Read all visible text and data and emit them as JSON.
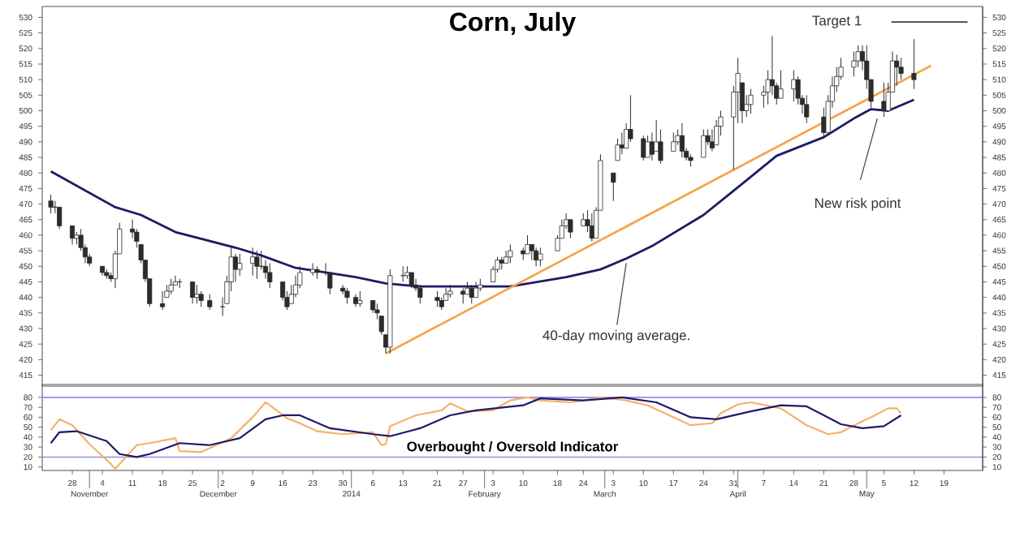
{
  "chart_data": [
    {
      "type": "candlestick",
      "title": "Corn, July",
      "color": "#2b2b2b",
      "x": [
        "2013-10-23",
        "2013-10-24",
        "2013-10-25",
        "2013-10-28",
        "2013-10-29",
        "2013-10-30",
        "2013-10-31",
        "2013-11-01",
        "2013-11-04",
        "2013-11-05",
        "2013-11-06",
        "2013-11-07",
        "2013-11-08",
        "2013-11-11",
        "2013-11-12",
        "2013-11-13",
        "2013-11-14",
        "2013-11-15",
        "2013-11-18",
        "2013-11-19",
        "2013-11-20",
        "2013-11-21",
        "2013-11-22",
        "2013-11-25",
        "2013-11-26",
        "2013-11-27",
        "2013-11-29",
        "2013-12-02",
        "2013-12-03",
        "2013-12-04",
        "2013-12-05",
        "2013-12-06",
        "2013-12-09",
        "2013-12-10",
        "2013-12-11",
        "2013-12-12",
        "2013-12-13",
        "2013-12-16",
        "2013-12-17",
        "2013-12-18",
        "2013-12-19",
        "2013-12-20",
        "2013-12-23",
        "2013-12-24",
        "2013-12-26",
        "2013-12-27",
        "2013-12-30",
        "2013-12-31",
        "2014-01-02",
        "2014-01-03",
        "2014-01-06",
        "2014-01-07",
        "2014-01-08",
        "2014-01-09",
        "2014-01-10",
        "2014-01-13",
        "2014-01-14",
        "2014-01-15",
        "2014-01-16",
        "2014-01-17",
        "2014-01-21",
        "2014-01-22",
        "2014-01-23",
        "2014-01-24",
        "2014-01-27",
        "2014-01-28",
        "2014-01-29",
        "2014-01-30",
        "2014-01-31",
        "2014-02-03",
        "2014-02-04",
        "2014-02-05",
        "2014-02-06",
        "2014-02-07",
        "2014-02-10",
        "2014-02-11",
        "2014-02-12",
        "2014-02-13",
        "2014-02-14",
        "2014-02-18",
        "2014-02-19",
        "2014-02-20",
        "2014-02-21",
        "2014-02-24",
        "2014-02-25",
        "2014-02-26",
        "2014-02-27",
        "2014-02-28",
        "2014-03-03",
        "2014-03-04",
        "2014-03-05",
        "2014-03-06",
        "2014-03-07",
        "2014-03-10",
        "2014-03-11",
        "2014-03-12",
        "2014-03-13",
        "2014-03-14",
        "2014-03-17",
        "2014-03-18",
        "2014-03-19",
        "2014-03-20",
        "2014-03-21",
        "2014-03-24",
        "2014-03-25",
        "2014-03-26",
        "2014-03-27",
        "2014-03-28",
        "2014-03-31",
        "2014-04-01",
        "2014-04-02",
        "2014-04-03",
        "2014-04-04",
        "2014-04-07",
        "2014-04-08",
        "2014-04-09",
        "2014-04-10",
        "2014-04-11",
        "2014-04-14",
        "2014-04-15",
        "2014-04-16",
        "2014-04-17",
        "2014-04-21",
        "2014-04-22",
        "2014-04-23",
        "2014-04-24",
        "2014-04-25",
        "2014-04-28",
        "2014-04-29",
        "2014-04-30",
        "2014-05-01",
        "2014-05-02",
        "2014-05-05",
        "2014-05-06",
        "2014-05-07",
        "2014-05-08",
        "2014-05-09",
        "2014-05-12"
      ],
      "ohlc": [
        [
          471,
          473,
          467,
          469
        ],
        [
          469,
          471,
          467,
          469
        ],
        [
          469,
          469,
          462,
          463
        ],
        [
          463,
          463,
          457,
          459
        ],
        [
          459,
          461,
          457,
          460
        ],
        [
          460,
          462,
          455,
          456
        ],
        [
          456,
          457,
          451,
          453
        ],
        [
          453,
          454,
          450,
          451
        ],
        [
          450,
          450,
          447,
          448
        ],
        [
          448,
          449,
          446,
          447
        ],
        [
          447,
          448,
          445,
          446
        ],
        [
          446,
          455,
          443,
          454
        ],
        [
          454,
          464,
          454,
          462
        ],
        [
          462,
          465,
          459,
          461
        ],
        [
          461,
          462,
          456,
          458
        ],
        [
          457,
          457,
          451,
          452
        ],
        [
          452,
          452,
          445,
          446
        ],
        [
          446,
          446,
          437,
          438
        ],
        [
          438,
          442,
          436,
          437
        ],
        [
          440,
          444,
          440,
          442
        ],
        [
          442,
          446,
          441,
          444
        ],
        [
          444,
          447,
          444,
          445
        ],
        [
          445,
          446,
          443,
          445
        ],
        [
          445,
          445,
          438,
          440
        ],
        [
          440,
          444,
          438,
          441
        ],
        [
          441,
          442,
          437,
          439
        ],
        [
          439,
          441,
          436,
          437
        ],
        [
          437,
          440,
          434,
          437
        ],
        [
          438,
          447,
          438,
          445
        ],
        [
          445,
          456,
          442,
          453
        ],
        [
          453,
          454,
          445,
          449
        ],
        [
          449,
          454,
          447,
          451
        ],
        [
          451,
          456,
          447,
          453
        ],
        [
          453,
          455,
          446,
          450
        ],
        [
          450,
          455,
          449,
          450
        ],
        [
          450,
          452,
          446,
          448
        ],
        [
          448,
          451,
          443,
          445
        ],
        [
          445,
          445,
          439,
          440
        ],
        [
          440,
          442,
          436,
          437
        ],
        [
          438,
          444,
          438,
          441
        ],
        [
          441,
          447,
          440,
          444
        ],
        [
          444,
          450,
          443,
          448
        ],
        [
          448,
          451,
          447,
          449
        ],
        [
          449,
          450,
          446,
          448
        ],
        [
          448,
          451,
          447,
          448
        ],
        [
          448,
          448,
          441,
          443
        ],
        [
          443,
          444,
          441,
          442
        ],
        [
          442,
          443,
          438,
          440
        ],
        [
          440,
          441,
          437,
          438
        ],
        [
          438,
          442,
          437,
          439
        ],
        [
          439,
          439,
          435,
          436
        ],
        [
          436,
          438,
          433,
          435
        ],
        [
          434,
          434,
          428,
          429
        ],
        [
          428,
          428,
          422,
          424
        ],
        [
          424,
          449,
          422,
          447
        ],
        [
          447,
          450,
          445,
          447
        ],
        [
          447,
          450,
          446,
          448
        ],
        [
          448,
          448,
          443,
          444
        ],
        [
          444,
          446,
          442,
          443
        ],
        [
          443,
          444,
          438,
          440
        ],
        [
          440,
          442,
          437,
          439
        ],
        [
          439,
          440,
          436,
          437
        ],
        [
          439,
          443,
          439,
          441
        ],
        [
          441,
          444,
          440,
          442
        ],
        [
          442,
          443,
          438,
          441
        ],
        [
          441,
          445,
          441,
          443
        ],
        [
          443,
          444,
          438,
          440
        ],
        [
          440,
          445,
          440,
          443
        ],
        [
          443,
          446,
          442,
          444
        ],
        [
          445,
          450,
          445,
          449
        ],
        [
          449,
          453,
          448,
          452
        ],
        [
          452,
          453,
          449,
          451
        ],
        [
          451,
          455,
          451,
          453
        ],
        [
          453,
          457,
          451,
          455
        ],
        [
          455,
          456,
          452,
          454
        ],
        [
          454,
          460,
          454,
          457
        ],
        [
          457,
          457,
          452,
          455
        ],
        [
          455,
          456,
          450,
          452
        ],
        [
          452,
          456,
          450,
          454
        ],
        [
          455,
          460,
          455,
          459
        ],
        [
          459,
          465,
          459,
          463
        ],
        [
          463,
          467,
          462,
          465
        ],
        [
          465,
          465,
          459,
          461
        ],
        [
          463,
          467,
          463,
          465
        ],
        [
          465,
          468,
          461,
          463
        ],
        [
          463,
          467,
          458,
          459
        ],
        [
          459,
          469,
          459,
          468
        ],
        [
          468,
          486,
          468,
          484
        ],
        [
          480,
          480,
          471,
          477
        ],
        [
          484,
          491,
          484,
          489
        ],
        [
          489,
          493,
          486,
          488
        ],
        [
          488,
          496,
          488,
          494
        ],
        [
          494,
          505,
          490,
          491
        ],
        [
          491,
          492,
          484,
          485
        ],
        [
          485,
          492,
          485,
          490
        ],
        [
          490,
          493,
          484,
          486
        ],
        [
          487,
          497,
          487,
          490
        ],
        [
          490,
          494,
          483,
          484
        ],
        [
          487,
          493,
          487,
          490
        ],
        [
          490,
          494,
          489,
          492
        ],
        [
          492,
          496,
          485,
          487
        ],
        [
          487,
          488,
          484,
          485
        ],
        [
          485,
          486,
          482,
          484
        ],
        [
          485,
          494,
          485,
          492
        ],
        [
          492,
          494,
          489,
          490
        ],
        [
          490,
          494,
          487,
          488
        ],
        [
          489,
          497,
          489,
          495
        ],
        [
          495,
          500,
          492,
          498
        ],
        [
          498,
          508,
          481,
          506
        ],
        [
          506,
          517,
          496,
          512
        ],
        [
          509,
          509,
          496,
          500
        ],
        [
          500,
          505,
          498,
          502
        ],
        [
          502,
          507,
          499,
          505
        ],
        [
          505,
          508,
          501,
          506
        ],
        [
          506,
          513,
          502,
          510
        ],
        [
          510,
          524,
          505,
          508
        ],
        [
          508,
          509,
          502,
          504
        ],
        [
          504,
          513,
          504,
          507
        ],
        [
          507,
          513,
          503,
          510
        ],
        [
          510,
          511,
          502,
          504
        ],
        [
          504,
          505,
          499,
          502
        ],
        [
          502,
          505,
          496,
          498
        ],
        [
          498,
          501,
          491,
          493
        ],
        [
          493,
          505,
          492,
          503
        ],
        [
          503,
          511,
          501,
          508
        ],
        [
          508,
          514,
          506,
          511
        ],
        [
          511,
          517,
          510,
          514
        ],
        [
          514,
          519,
          511,
          516
        ],
        [
          516,
          521,
          514,
          519
        ],
        [
          519,
          521,
          513,
          516
        ],
        [
          516,
          521,
          507,
          510
        ],
        [
          510,
          510,
          501,
          503
        ],
        [
          503,
          509,
          498,
          500
        ],
        [
          500,
          509,
          500,
          506
        ],
        [
          506,
          519,
          506,
          516
        ],
        [
          516,
          518,
          508,
          514
        ],
        [
          514,
          517,
          510,
          512
        ],
        [
          512,
          523,
          507,
          510
        ]
      ],
      "series": [
        {
          "type": "line",
          "color": "#1f1a66",
          "x": [
            "2013-10-23",
            "2013-11-07",
            "2013-11-13",
            "2013-11-21",
            "2013-12-05",
            "2013-12-11",
            "2013-12-19",
            "2014-01-02",
            "2014-01-09",
            "2014-01-17",
            "2014-01-31",
            "2014-02-07",
            "2014-02-20",
            "2014-02-28",
            "2014-03-06",
            "2014-03-12",
            "2014-03-24",
            "2014-04-02",
            "2014-04-10",
            "2014-04-21",
            "2014-04-28",
            "2014-05-02",
            "2014-05-06",
            "2014-05-12"
          ],
          "values": [
            480.5,
            469,
            466.5,
            461,
            456,
            453.5,
            449.5,
            446.5,
            444.5,
            443.5,
            443.5,
            443.5,
            446.5,
            449,
            452.5,
            456.5,
            466.5,
            476.5,
            485.5,
            491.5,
            497.5,
            500.5,
            500,
            503.5
          ]
        },
        {
          "type": "line",
          "color": "#f7a24b",
          "x": [
            "2014-01-09",
            "2014-05-16"
          ],
          "values": [
            422,
            514.5
          ]
        }
      ],
      "xlim": [
        "2013-10-21",
        "2014-05-28"
      ],
      "ylim": [
        411.5,
        533.5
      ],
      "yticks": [
        415,
        420,
        425,
        430,
        435,
        440,
        445,
        450,
        455,
        460,
        465,
        470,
        475,
        480,
        485,
        490,
        495,
        500,
        505,
        510,
        515,
        520,
        525,
        530
      ],
      "y2lim": [
        411.5,
        533.5
      ],
      "y2ticks": [
        415,
        420,
        425,
        430,
        435,
        440,
        445,
        450,
        455,
        460,
        465,
        470,
        475,
        480,
        485,
        490,
        495,
        500,
        505,
        510,
        515,
        520,
        525,
        530
      ],
      "tick_labels": "y",
      "ref_lines": [
        {
          "axis": "y",
          "value": 528.5,
          "label": "Target 1",
          "color": "#404040"
        }
      ],
      "annotations": [
        "New risk point",
        {
          "text": "40-day moving average.",
          "x": "2014-03-06",
          "y": 451
        }
      ]
    },
    {
      "type": "line",
      "title": "Overbought / Oversold Indicator",
      "series": [
        {
          "color": "#f4b26a",
          "x": [
            "2013-10-23",
            "2013-10-25",
            "2013-10-28",
            "2013-11-01",
            "2013-11-06",
            "2013-11-07",
            "2013-11-08",
            "2013-11-12",
            "2013-11-15",
            "2013-11-21",
            "2013-11-22",
            "2013-11-27",
            "2013-12-04",
            "2013-12-09",
            "2013-12-12",
            "2013-12-13",
            "2013-12-17",
            "2013-12-20",
            "2013-12-24",
            "2013-12-30",
            "2014-01-06",
            "2014-01-08",
            "2014-01-09",
            "2014-01-10",
            "2014-01-16",
            "2014-01-22",
            "2014-01-24",
            "2014-01-28",
            "2014-02-03",
            "2014-02-07",
            "2014-02-11",
            "2014-02-14",
            "2014-02-21",
            "2014-02-24",
            "2014-02-28",
            "2014-03-06",
            "2014-03-11",
            "2014-03-14",
            "2014-03-19",
            "2014-03-21",
            "2014-03-26",
            "2014-03-28",
            "2014-04-01",
            "2014-04-04",
            "2014-04-11",
            "2014-04-17",
            "2014-04-22",
            "2014-04-25",
            "2014-04-30",
            "2014-05-02",
            "2014-05-06",
            "2014-05-08",
            "2014-05-09"
          ],
          "values": [
            47,
            58,
            52,
            33,
            13,
            8,
            13,
            32,
            34,
            39,
            26,
            25,
            39,
            60,
            75,
            72,
            59,
            54,
            46,
            43,
            45,
            32,
            33,
            51,
            62,
            67,
            74,
            66,
            67,
            77,
            80,
            77,
            75,
            77,
            80,
            77,
            72,
            66,
            56,
            52,
            54,
            64,
            73,
            75,
            69,
            52,
            43,
            45,
            56,
            60,
            69,
            69,
            64
          ]
        },
        {
          "color": "#1f1a66",
          "x": [
            "2013-10-23",
            "2013-10-25",
            "2013-10-29",
            "2013-11-05",
            "2013-11-08",
            "2013-11-12",
            "2013-11-15",
            "2013-11-22",
            "2013-11-29",
            "2013-12-06",
            "2013-12-12",
            "2013-12-16",
            "2013-12-20",
            "2013-12-27",
            "2014-01-06",
            "2014-01-10",
            "2014-01-17",
            "2014-01-24",
            "2014-01-30",
            "2014-02-10",
            "2014-02-14",
            "2014-02-24",
            "2014-03-05",
            "2014-03-13",
            "2014-03-21",
            "2014-03-27",
            "2014-04-04",
            "2014-04-11",
            "2014-04-17",
            "2014-04-25",
            "2014-04-30",
            "2014-05-05",
            "2014-05-09"
          ],
          "values": [
            34,
            45,
            46,
            36,
            23,
            20,
            23,
            34,
            32,
            39,
            58,
            62,
            62,
            49,
            43,
            41,
            49,
            62,
            67,
            72,
            79,
            77,
            80,
            75,
            60,
            58,
            66,
            72,
            71,
            53,
            49,
            51,
            62
          ]
        }
      ],
      "xlim": [
        "2013-10-21",
        "2014-05-28"
      ],
      "ylim": [
        6.5,
        93
      ],
      "yticks": [
        10,
        20,
        30,
        40,
        50,
        60,
        70,
        80
      ],
      "y2lim": [
        6.5,
        93
      ],
      "y2ticks": [
        10,
        20,
        30,
        40,
        50,
        60,
        70,
        80
      ],
      "xticks": [
        {
          "value": "2013-10-28",
          "label": "28"
        },
        {
          "value": "2013-11-04",
          "label": "4"
        },
        {
          "value": "2013-11-11",
          "label": "11"
        },
        {
          "value": "2013-11-18",
          "label": "18"
        },
        {
          "value": "2013-11-25",
          "label": "25"
        },
        {
          "value": "2013-12-02",
          "label": "2"
        },
        {
          "value": "2013-12-09",
          "label": "9"
        },
        {
          "value": "2013-12-16",
          "label": "16"
        },
        {
          "value": "2013-12-23",
          "label": "23"
        },
        {
          "value": "2013-12-30",
          "label": "30"
        },
        {
          "value": "2014-01-06",
          "label": "6"
        },
        {
          "value": "2014-01-13",
          "label": "13"
        },
        {
          "value": "2014-01-21",
          "label": "21"
        },
        {
          "value": "2014-01-27",
          "label": "27"
        },
        {
          "value": "2014-02-03",
          "label": "3"
        },
        {
          "value": "2014-02-10",
          "label": "10"
        },
        {
          "value": "2014-02-18",
          "label": "18"
        },
        {
          "value": "2014-02-24",
          "label": "24"
        },
        {
          "value": "2014-03-03",
          "label": "3"
        },
        {
          "value": "2014-03-10",
          "label": "10"
        },
        {
          "value": "2014-03-17",
          "label": "17"
        },
        {
          "value": "2014-03-24",
          "label": "24"
        },
        {
          "value": "2014-03-31",
          "label": "31"
        },
        {
          "value": "2014-04-07",
          "label": "7"
        },
        {
          "value": "2014-04-14",
          "label": "14"
        },
        {
          "value": "2014-04-21",
          "label": "21"
        },
        {
          "value": "2014-04-28",
          "label": "28"
        },
        {
          "value": "2014-05-05",
          "label": "5"
        },
        {
          "value": "2014-05-12",
          "label": "12"
        },
        {
          "value": "2014-05-19",
          "label": "19"
        }
      ],
      "x2lim": [
        "2013-10-21",
        "2014-05-28"
      ],
      "x2ticks": [
        {
          "value": "2013-11-01",
          "label": "November"
        },
        {
          "value": "2013-12-01",
          "label": "December"
        },
        {
          "value": "2014-01-01",
          "label": "2014"
        },
        {
          "value": "2014-02-01",
          "label": "February"
        },
        {
          "value": "2014-03-01",
          "label": "March"
        },
        {
          "value": "2014-04-01",
          "label": "April"
        },
        {
          "value": "2014-05-01",
          "label": "May"
        }
      ],
      "ref_lines": [
        {
          "axis": "y",
          "value": 20,
          "color": "#8f8fe6"
        },
        {
          "axis": "y",
          "value": 80,
          "color": "#8f8fe6"
        }
      ]
    }
  ]
}
